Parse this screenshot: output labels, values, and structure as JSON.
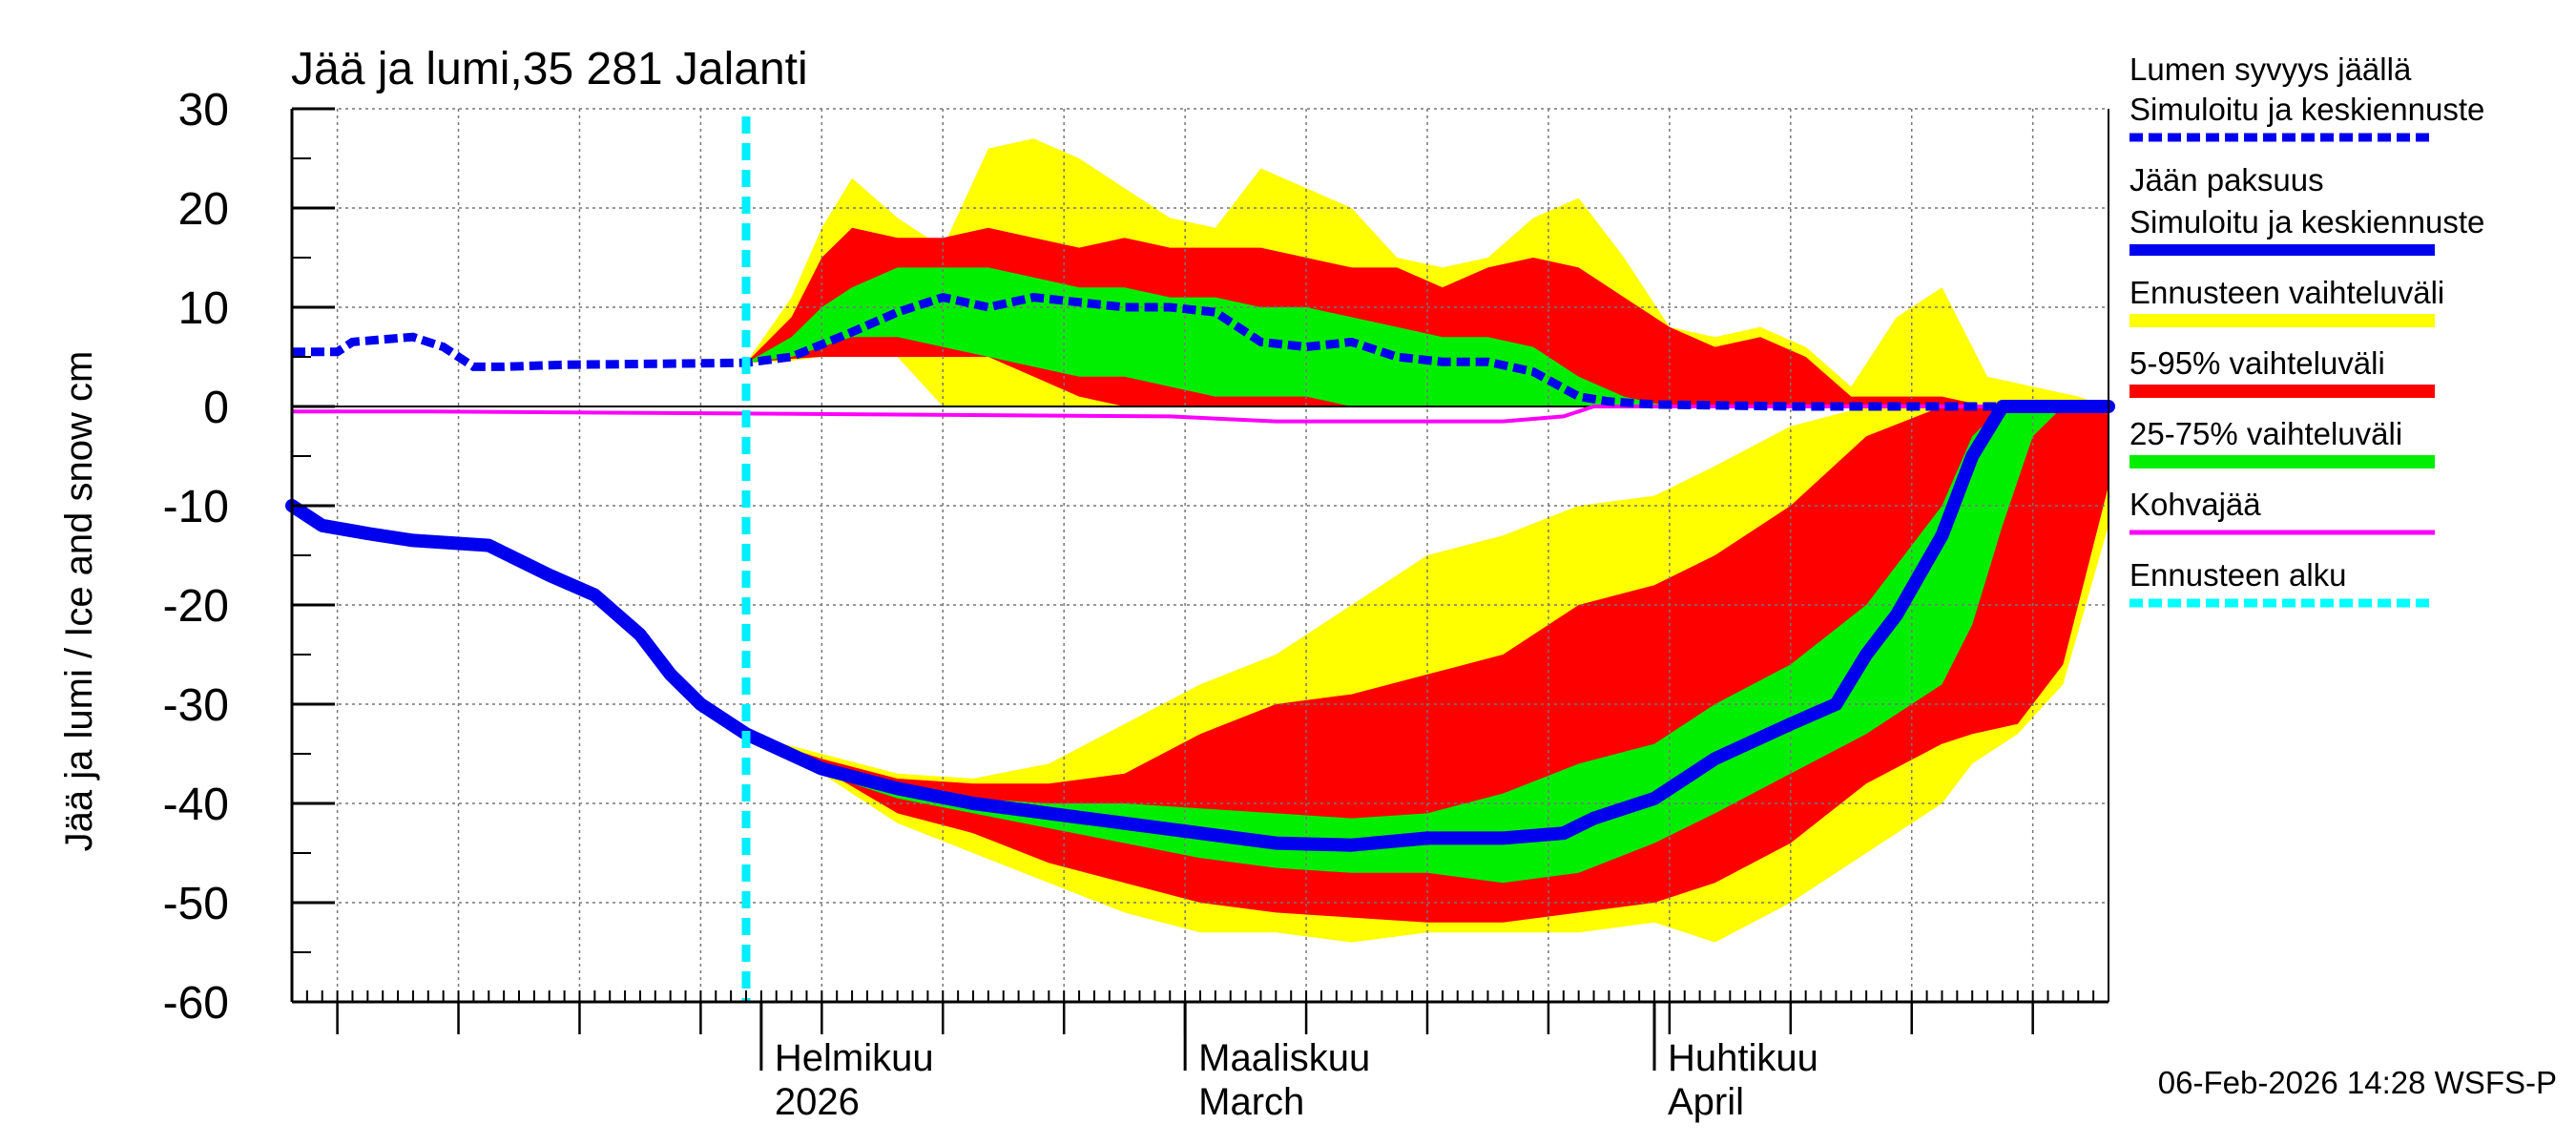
{
  "chart_data": {
    "type": "area",
    "title": "Jää ja lumi,35 281 Jalanti",
    "ylabel": "Jää ja lumi / Ice and snow    cm",
    "ylim": [
      -60,
      30
    ],
    "yticks": [
      30,
      20,
      10,
      0,
      -10,
      -20,
      -30,
      -40,
      -50,
      -60
    ],
    "grid": true,
    "xlim": [
      "2026-01-01",
      "2026-05-01"
    ],
    "x_labels": [
      {
        "date": "2026-02-01",
        "line1": "Helmikuu",
        "line2": "2026"
      },
      {
        "date": "2026-03-01",
        "line1": "Maaliskuu",
        "line2": "March"
      },
      {
        "date": "2026-04-01",
        "line1": "Huhtikuu",
        "line2": "April"
      }
    ],
    "forecast_start": "2026-01-31",
    "footer": "06-Feb-2026 14:28 WSFS-P",
    "legend": [
      {
        "line1": "Lumen syvyys jäällä",
        "line2": "Simuloitu ja keskiennuste",
        "color": "#0000ee",
        "style": "dashed"
      },
      {
        "line1": "Jään paksuus",
        "line2": "Simuloitu ja keskiennuste",
        "color": "#0000ee",
        "style": "solid"
      },
      {
        "line1": "Ennusteen vaihteluväli",
        "color": "#ffff00",
        "style": "band"
      },
      {
        "line1": "5-95% vaihteluväli",
        "color": "#ff0000",
        "style": "band"
      },
      {
        "line1": "25-75% vaihteluväli",
        "color": "#00ee00",
        "style": "band"
      },
      {
        "line1": "Kohvajää",
        "color": "#ff00ff",
        "style": "solid"
      },
      {
        "line1": "Ennusteen alku",
        "color": "#00ffff",
        "style": "dashed"
      }
    ],
    "series": {
      "snow_mean": {
        "x": [
          "2026-01-01",
          "2026-01-04",
          "2026-01-05",
          "2026-01-09",
          "2026-01-11",
          "2026-01-13",
          "2026-01-15",
          "2026-01-19",
          "2026-01-25",
          "2026-01-31",
          "2026-02-03",
          "2026-02-07",
          "2026-02-10",
          "2026-02-13",
          "2026-02-16",
          "2026-02-19",
          "2026-02-22",
          "2026-02-25",
          "2026-02-28",
          "2026-03-03",
          "2026-03-06",
          "2026-03-09",
          "2026-03-12",
          "2026-03-15",
          "2026-03-18",
          "2026-03-21",
          "2026-03-24",
          "2026-03-27",
          "2026-03-29",
          "2026-04-01",
          "2026-04-10",
          "2026-04-20",
          "2026-05-01"
        ],
        "y": [
          5.5,
          5.5,
          6.5,
          7,
          6,
          4,
          4,
          4.2,
          4.3,
          4.4,
          5,
          7.5,
          9.5,
          11,
          10,
          11,
          10.5,
          10,
          10,
          9.5,
          6.5,
          6,
          6.5,
          5,
          4.5,
          4.5,
          3.5,
          1,
          0.5,
          0.2,
          0,
          0,
          0
        ]
      },
      "ice_mean": {
        "x": [
          "2026-01-01",
          "2026-01-03",
          "2026-01-06",
          "2026-01-09",
          "2026-01-14",
          "2026-01-18",
          "2026-01-21",
          "2026-01-24",
          "2026-01-26",
          "2026-01-28",
          "2026-01-31",
          "2026-02-05",
          "2026-02-10",
          "2026-02-15",
          "2026-02-20",
          "2026-02-25",
          "2026-03-02",
          "2026-03-07",
          "2026-03-12",
          "2026-03-17",
          "2026-03-22",
          "2026-03-26",
          "2026-03-28",
          "2026-04-01",
          "2026-04-05",
          "2026-04-10",
          "2026-04-13",
          "2026-04-15",
          "2026-04-17",
          "2026-04-20",
          "2026-04-22",
          "2026-04-24",
          "2026-04-25",
          "2026-05-01"
        ],
        "y": [
          -10,
          -12,
          -12.8,
          -13.5,
          -14,
          -17,
          -19,
          -23,
          -27,
          -30,
          -33,
          -36.5,
          -38.5,
          -40,
          -41,
          -42,
          -43,
          -44,
          -44.2,
          -43.5,
          -43.5,
          -43,
          -41.5,
          -39.5,
          -35.5,
          -32,
          -30,
          -25,
          -21,
          -13,
          -5,
          0,
          0,
          0
        ]
      },
      "slush_ice": {
        "x": [
          "2026-01-01",
          "2026-01-10",
          "2026-02-28",
          "2026-03-07",
          "2026-03-22",
          "2026-03-26",
          "2026-03-27",
          "2026-03-28",
          "2026-05-01"
        ],
        "y": [
          -0.5,
          -0.5,
          -1.0,
          -1.5,
          -1.5,
          -1.0,
          -0.5,
          0,
          0
        ]
      },
      "band_full": {
        "x": [
          "2026-01-31",
          "2026-02-03",
          "2026-02-05",
          "2026-02-07",
          "2026-02-10",
          "2026-02-13",
          "2026-02-16",
          "2026-02-19",
          "2026-02-22",
          "2026-02-25",
          "2026-02-28",
          "2026-03-03",
          "2026-03-06",
          "2026-03-09",
          "2026-03-12",
          "2026-03-15",
          "2026-03-18",
          "2026-03-21",
          "2026-03-24",
          "2026-03-27",
          "2026-03-30",
          "2026-04-02",
          "2026-04-05",
          "2026-04-08",
          "2026-04-11",
          "2026-04-14",
          "2026-04-17",
          "2026-04-20",
          "2026-04-23",
          "2026-04-26",
          "2026-04-29",
          "2026-05-01"
        ],
        "upper": [
          4.4,
          11,
          18,
          23,
          19,
          16,
          26,
          27,
          25,
          22,
          19,
          18,
          24,
          22,
          20,
          15,
          14,
          15,
          19,
          21,
          15,
          8,
          7,
          8,
          6,
          2,
          9,
          12,
          3,
          2,
          1,
          0
        ],
        "lower": [
          4.4,
          4.6,
          5,
          5,
          5,
          0,
          0,
          0,
          0,
          0,
          0,
          0,
          0,
          0,
          0,
          0,
          0,
          0,
          0,
          0,
          0,
          0,
          0,
          0,
          0,
          0,
          0,
          0,
          0,
          0,
          0,
          0
        ]
      },
      "band_5_95": {
        "x": [
          "2026-01-31",
          "2026-02-03",
          "2026-02-05",
          "2026-02-07",
          "2026-02-10",
          "2026-02-13",
          "2026-02-16",
          "2026-02-19",
          "2026-02-22",
          "2026-02-25",
          "2026-02-28",
          "2026-03-03",
          "2026-03-06",
          "2026-03-09",
          "2026-03-12",
          "2026-03-15",
          "2026-03-18",
          "2026-03-21",
          "2026-03-24",
          "2026-03-27",
          "2026-03-30",
          "2026-04-02",
          "2026-04-05",
          "2026-04-08",
          "2026-04-11",
          "2026-04-14",
          "2026-04-17",
          "2026-04-20",
          "2026-04-23",
          "2026-04-26",
          "2026-04-29",
          "2026-05-01"
        ],
        "upper": [
          4.4,
          9,
          15,
          18,
          17,
          17,
          18,
          17,
          16,
          17,
          16,
          16,
          16,
          15,
          14,
          14,
          12,
          14,
          15,
          14,
          11,
          8,
          6,
          7,
          5,
          1,
          1,
          1,
          0,
          0,
          0,
          0
        ],
        "lower": [
          4.4,
          4.8,
          5,
          5,
          5,
          5,
          5,
          3,
          1,
          0,
          0,
          0,
          0,
          0,
          0,
          0,
          0,
          0,
          0,
          0,
          0,
          0,
          0,
          0,
          0,
          0,
          0,
          0,
          0,
          0,
          0,
          0
        ]
      },
      "band_25_75": {
        "x": [
          "2026-01-31",
          "2026-02-03",
          "2026-02-05",
          "2026-02-07",
          "2026-02-10",
          "2026-02-13",
          "2026-02-16",
          "2026-02-19",
          "2026-02-22",
          "2026-02-25",
          "2026-02-28",
          "2026-03-03",
          "2026-03-06",
          "2026-03-09",
          "2026-03-12",
          "2026-03-15",
          "2026-03-18",
          "2026-03-21",
          "2026-03-24",
          "2026-03-27",
          "2026-03-30",
          "2026-04-02",
          "2026-04-05",
          "2026-04-08",
          "2026-04-11",
          "2026-04-14",
          "2026-04-17",
          "2026-04-20",
          "2026-04-23",
          "2026-04-26",
          "2026-04-29",
          "2026-05-01"
        ],
        "upper": [
          4.4,
          7,
          10,
          12,
          14,
          14,
          14,
          13,
          12,
          12,
          11,
          11,
          10,
          10,
          9,
          8,
          7,
          7,
          6,
          3,
          1,
          0,
          0,
          0,
          0,
          0,
          0,
          0,
          0,
          0,
          0,
          0
        ],
        "lower": [
          4.4,
          5,
          6,
          7,
          7,
          6,
          5,
          4,
          3,
          3,
          2,
          1,
          1,
          1,
          0,
          0,
          0,
          0,
          0,
          0,
          0,
          0,
          0,
          0,
          0,
          0,
          0,
          0,
          0,
          0,
          0,
          0
        ]
      },
      "ice_band_full": {
        "x": [
          "2026-01-31",
          "2026-02-05",
          "2026-02-10",
          "2026-02-15",
          "2026-02-20",
          "2026-02-25",
          "2026-03-02",
          "2026-03-07",
          "2026-03-12",
          "2026-03-17",
          "2026-03-22",
          "2026-03-27",
          "2026-04-01",
          "2026-04-05",
          "2026-04-10",
          "2026-04-15",
          "2026-04-20",
          "2026-04-22",
          "2026-04-25",
          "2026-04-28",
          "2026-05-01"
        ],
        "upper": [
          -33,
          -35,
          -37,
          -37.5,
          -36,
          -32,
          -28,
          -25,
          -20,
          -15,
          -13,
          -10,
          -9,
          -6,
          -2,
          0,
          0,
          0,
          0,
          0,
          0
        ],
        "lower": [
          -33,
          -37,
          -42,
          -45,
          -48,
          -51,
          -53,
          -53,
          -54,
          -53,
          -53,
          -53,
          -52,
          -54,
          -50,
          -45,
          -40,
          -36,
          -33,
          -28,
          -12
        ]
      },
      "ice_band_5_95": {
        "x": [
          "2026-01-31",
          "2026-02-05",
          "2026-02-10",
          "2026-02-15",
          "2026-02-20",
          "2026-02-25",
          "2026-03-02",
          "2026-03-07",
          "2026-03-12",
          "2026-03-17",
          "2026-03-22",
          "2026-03-27",
          "2026-04-01",
          "2026-04-05",
          "2026-04-10",
          "2026-04-15",
          "2026-04-20",
          "2026-04-22",
          "2026-04-25",
          "2026-04-28",
          "2026-05-01"
        ],
        "upper": [
          -33,
          -35.5,
          -37.5,
          -38,
          -38,
          -37,
          -33,
          -30,
          -29,
          -27,
          -25,
          -20,
          -18,
          -15,
          -10,
          -3,
          0,
          0,
          0,
          0,
          0
        ],
        "lower": [
          -33,
          -36.5,
          -41,
          -43,
          -46,
          -48,
          -50,
          -51,
          -51.5,
          -52,
          -52,
          -51,
          -50,
          -48,
          -44,
          -38,
          -34,
          -33,
          -32,
          -26,
          -8
        ]
      },
      "ice_band_25_75": {
        "x": [
          "2026-01-31",
          "2026-02-05",
          "2026-02-10",
          "2026-02-15",
          "2026-02-20",
          "2026-02-25",
          "2026-03-02",
          "2026-03-07",
          "2026-03-12",
          "2026-03-17",
          "2026-03-22",
          "2026-03-27",
          "2026-04-01",
          "2026-04-05",
          "2026-04-10",
          "2026-04-15",
          "2026-04-20",
          "2026-04-22",
          "2026-04-24",
          "2026-04-26",
          "2026-04-28",
          "2026-05-01"
        ],
        "upper": [
          -33,
          -36,
          -38,
          -39.5,
          -40,
          -40,
          -40.5,
          -41,
          -41.5,
          -41,
          -39,
          -36,
          -34,
          -30,
          -26,
          -20,
          -10,
          -3,
          0,
          0,
          0,
          0
        ],
        "lower": [
          -33,
          -37,
          -39.5,
          -41,
          -42.5,
          -44,
          -45.5,
          -46.5,
          -47,
          -47,
          -48,
          -47,
          -44,
          -41,
          -37,
          -33,
          -28,
          -22,
          -12,
          -3,
          0,
          0
        ]
      }
    }
  }
}
